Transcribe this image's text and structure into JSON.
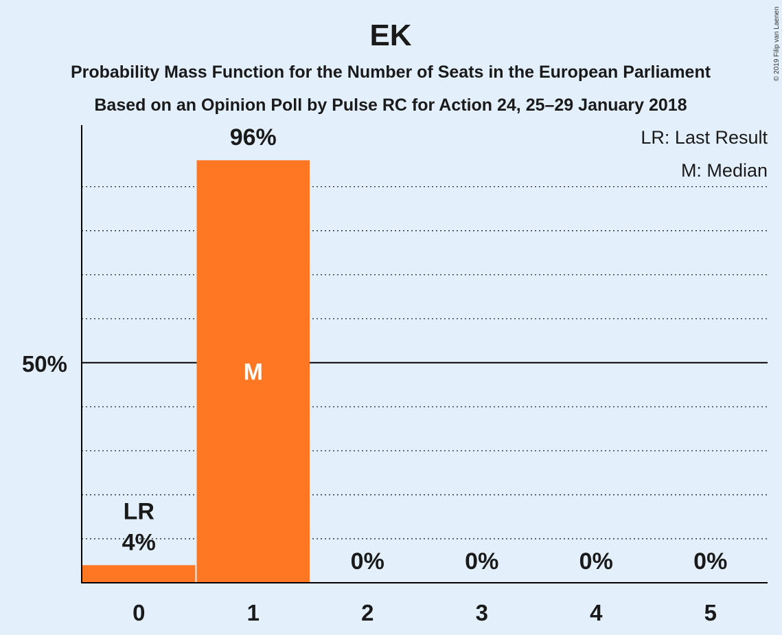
{
  "chart_data": {
    "type": "bar",
    "title": "EK",
    "subtitle_1": "Probability Mass Function for the Number of Seats in the European Parliament",
    "subtitle_2": "Based on an Opinion Poll by Pulse RC for Action 24, 25–29 January 2018",
    "categories": [
      "0",
      "1",
      "2",
      "3",
      "4",
      "5"
    ],
    "values": [
      4,
      96,
      0,
      0,
      0,
      0
    ],
    "value_labels": [
      "4%",
      "96%",
      "0%",
      "0%",
      "0%",
      "0%"
    ],
    "last_result_category": "0",
    "last_result_marker": "LR",
    "median_category": "1",
    "median_marker": "M",
    "y_tick_label": "50%",
    "y_tick_value": 50,
    "ylim": [
      0,
      104
    ],
    "gridlines": [
      10,
      20,
      30,
      40,
      60,
      70,
      80,
      90
    ],
    "grid": true,
    "legend_position": "top-right",
    "legend": [
      "LR: Last Result",
      "M: Median"
    ],
    "bar_color": "#ff7722",
    "copyright": "© 2019 Filip van Laenen"
  }
}
